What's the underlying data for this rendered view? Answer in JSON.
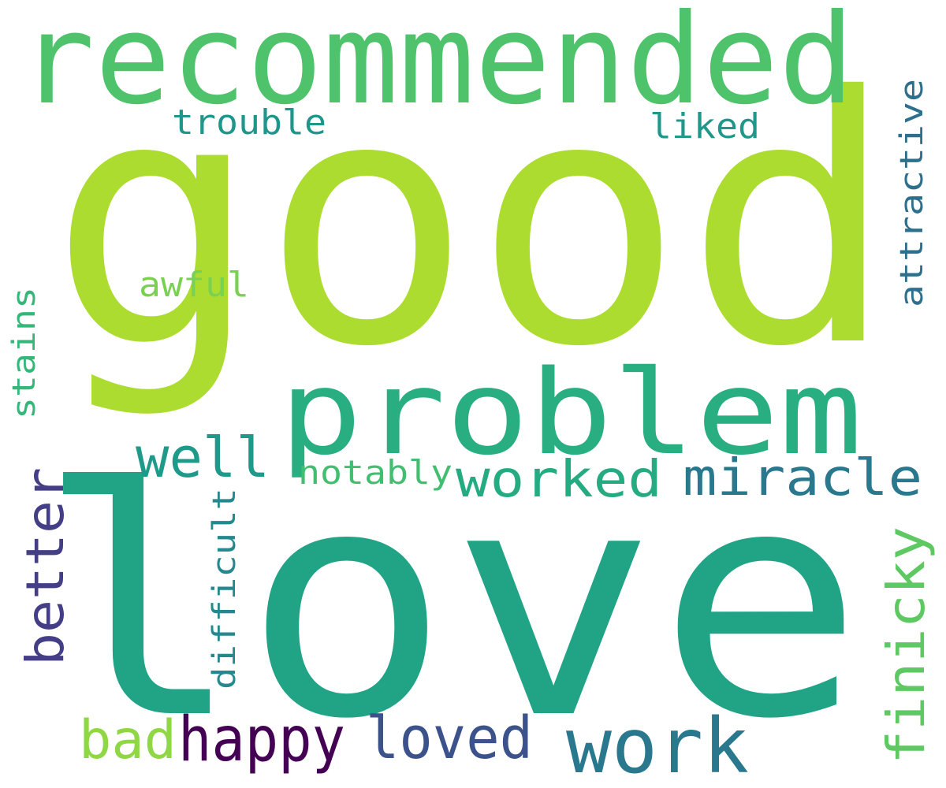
{
  "words": [
    {
      "id": "good",
      "text": "good",
      "color": "#addc30",
      "rotated": false
    },
    {
      "id": "love",
      "text": "love",
      "color": "#21a386",
      "rotated": false
    },
    {
      "id": "recommended",
      "text": "recommended",
      "color": "#4ec36b",
      "rotated": false
    },
    {
      "id": "problem",
      "text": "problem",
      "color": "#28ae80",
      "rotated": false
    },
    {
      "id": "work",
      "text": "work",
      "color": "#2a788e",
      "rotated": false
    },
    {
      "id": "happy",
      "text": "happy",
      "color": "#440154",
      "rotated": false
    },
    {
      "id": "loved",
      "text": "loved",
      "color": "#3b528b",
      "rotated": false
    },
    {
      "id": "worked",
      "text": "worked",
      "color": "#25ab82",
      "rotated": false
    },
    {
      "id": "miracle",
      "text": "miracle",
      "color": "#2a788e",
      "rotated": false
    },
    {
      "id": "well",
      "text": "well",
      "color": "#1f9a8a",
      "rotated": false
    },
    {
      "id": "bad",
      "text": "bad",
      "color": "#8fd744",
      "rotated": false
    },
    {
      "id": "better",
      "text": "better",
      "color": "#433e85",
      "rotated": true
    },
    {
      "id": "finicky",
      "text": "finicky",
      "color": "#5ec962",
      "rotated": true
    },
    {
      "id": "attractive",
      "text": "attractive",
      "color": "#2d708e",
      "rotated": true
    },
    {
      "id": "difficult",
      "text": "difficult",
      "color": "#23898e",
      "rotated": true
    },
    {
      "id": "stains",
      "text": "stains",
      "color": "#35b779",
      "rotated": true
    },
    {
      "id": "trouble",
      "text": "trouble",
      "color": "#1f968b",
      "rotated": false
    },
    {
      "id": "liked",
      "text": "liked",
      "color": "#1f988b",
      "rotated": false
    },
    {
      "id": "awful",
      "text": "awful",
      "color": "#7ad151",
      "rotated": false
    },
    {
      "id": "notably",
      "text": "notably",
      "color": "#42be71",
      "rotated": false
    }
  ]
}
